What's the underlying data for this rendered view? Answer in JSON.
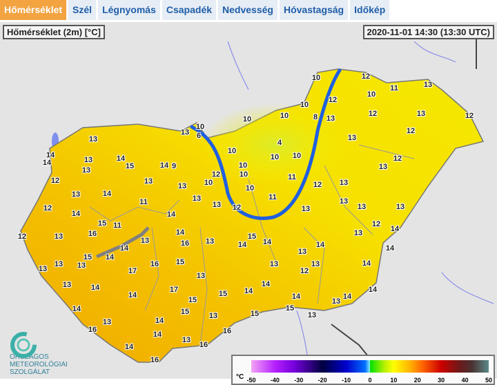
{
  "tabs": [
    {
      "label": "Hőmérséklet",
      "active": true
    },
    {
      "label": "Szél"
    },
    {
      "label": "Légnyomás"
    },
    {
      "label": "Csapadék"
    },
    {
      "label": "Nedvesség"
    },
    {
      "label": "Hóvastagság"
    },
    {
      "label": "Időkép"
    }
  ],
  "map": {
    "title": "Hőmérséklet (2m) [°C]",
    "timestamp": "2020-11-01 14:30 (13:30 UTC)",
    "annotation_color": "#1f5fe0",
    "stations": [
      "10",
      "12",
      "11",
      "10",
      "13",
      "12",
      "10",
      "12",
      "13",
      "12",
      "8",
      "13",
      "10",
      "10",
      "10",
      "6",
      "10",
      "4",
      "10",
      "10",
      "10",
      "13",
      "12",
      "12",
      "10",
      "12",
      "10",
      "10",
      "11",
      "12",
      "13",
      "13",
      "11",
      "13",
      "13",
      "13",
      "12",
      "13",
      "13",
      "13",
      "14",
      "14",
      "13",
      "13",
      "14",
      "15",
      "14",
      "9",
      "13",
      "13",
      "13",
      "12",
      "13",
      "14",
      "12",
      "14",
      "13",
      "11",
      "15",
      "11",
      "14",
      "16",
      "14",
      "13",
      "12",
      "13",
      "16",
      "13",
      "14",
      "15",
      "14",
      "14",
      "14",
      "17",
      "16",
      "15",
      "14",
      "15",
      "13",
      "14",
      "13",
      "12",
      "14",
      "13",
      "13",
      "12",
      "14",
      "14",
      "13",
      "13",
      "13",
      "13",
      "13",
      "14",
      "14",
      "17",
      "15",
      "15",
      "14",
      "14",
      "14",
      "13",
      "14",
      "14",
      "15",
      "13",
      "15",
      "15",
      "13",
      "13",
      "14",
      "16",
      "14",
      "13",
      "16",
      "16",
      "14",
      "16",
      "16",
      "16"
    ]
  },
  "legend": {
    "unit": "°C",
    "ticks": [
      "-50",
      "-40",
      "-30",
      "-20",
      "-10",
      "0",
      "10",
      "20",
      "30",
      "40",
      "50"
    ]
  },
  "logo": {
    "lines": [
      "ORSZÁGOS",
      "METEOROLÓGIAI",
      "SZOLGÁLAT"
    ]
  }
}
